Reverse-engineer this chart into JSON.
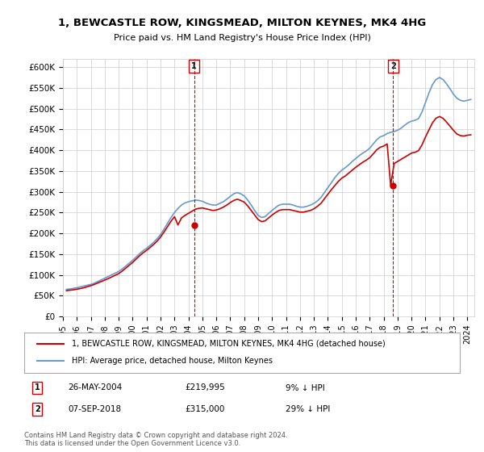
{
  "title": "1, BEWCASTLE ROW, KINGSMEAD, MILTON KEYNES, MK4 4HG",
  "subtitle": "Price paid vs. HM Land Registry's House Price Index (HPI)",
  "legend_line1": "1, BEWCASTLE ROW, KINGSMEAD, MILTON KEYNES, MK4 4HG (detached house)",
  "legend_line2": "HPI: Average price, detached house, Milton Keynes",
  "annotation1_label": "1",
  "annotation1_date": "26-MAY-2004",
  "annotation1_price": "£219,995",
  "annotation1_hpi": "9% ↓ HPI",
  "annotation2_label": "2",
  "annotation2_date": "07-SEP-2018",
  "annotation2_price": "£315,000",
  "annotation2_hpi": "29% ↓ HPI",
  "footer": "Contains HM Land Registry data © Crown copyright and database right 2024.\nThis data is licensed under the Open Government Licence v3.0.",
  "hpi_color": "#6699cc",
  "price_color": "#cc0000",
  "annotation_color": "#cc0000",
  "background_color": "#ffffff",
  "grid_color": "#cccccc",
  "ylim": [
    0,
    620000
  ],
  "yticks": [
    0,
    50000,
    100000,
    150000,
    200000,
    250000,
    300000,
    350000,
    400000,
    450000,
    500000,
    550000,
    600000
  ],
  "ytick_labels": [
    "£0",
    "£50K",
    "£100K",
    "£150K",
    "£200K",
    "£250K",
    "£300K",
    "£350K",
    "£400K",
    "£450K",
    "£500K",
    "£550K",
    "£600K"
  ],
  "hpi_x": [
    1995.25,
    1995.5,
    1995.75,
    1996.0,
    1996.25,
    1996.5,
    1996.75,
    1997.0,
    1997.25,
    1997.5,
    1997.75,
    1998.0,
    1998.25,
    1998.5,
    1998.75,
    1999.0,
    1999.25,
    1999.5,
    1999.75,
    2000.0,
    2000.25,
    2000.5,
    2000.75,
    2001.0,
    2001.25,
    2001.5,
    2001.75,
    2002.0,
    2002.25,
    2002.5,
    2002.75,
    2003.0,
    2003.25,
    2003.5,
    2003.75,
    2004.0,
    2004.25,
    2004.5,
    2004.75,
    2005.0,
    2005.25,
    2005.5,
    2005.75,
    2006.0,
    2006.25,
    2006.5,
    2006.75,
    2007.0,
    2007.25,
    2007.5,
    2007.75,
    2008.0,
    2008.25,
    2008.5,
    2008.75,
    2009.0,
    2009.25,
    2009.5,
    2009.75,
    2010.0,
    2010.25,
    2010.5,
    2010.75,
    2011.0,
    2011.25,
    2011.5,
    2011.75,
    2012.0,
    2012.25,
    2012.5,
    2012.75,
    2013.0,
    2013.25,
    2013.5,
    2013.75,
    2014.0,
    2014.25,
    2014.5,
    2014.75,
    2015.0,
    2015.25,
    2015.5,
    2015.75,
    2016.0,
    2016.25,
    2016.5,
    2016.75,
    2017.0,
    2017.25,
    2017.5,
    2017.75,
    2018.0,
    2018.25,
    2018.5,
    2018.75,
    2019.0,
    2019.25,
    2019.5,
    2019.75,
    2020.0,
    2020.25,
    2020.5,
    2020.75,
    2021.0,
    2021.25,
    2021.5,
    2021.75,
    2022.0,
    2022.25,
    2022.5,
    2022.75,
    2023.0,
    2023.25,
    2023.5,
    2023.75,
    2024.0,
    2024.25
  ],
  "hpi_y": [
    65000,
    66000,
    67500,
    69000,
    71000,
    73000,
    75000,
    77000,
    80000,
    84000,
    88000,
    92000,
    96000,
    100000,
    104000,
    108000,
    114000,
    121000,
    128000,
    135000,
    143000,
    151000,
    158000,
    164000,
    171000,
    178000,
    187000,
    197000,
    210000,
    224000,
    238000,
    250000,
    260000,
    268000,
    273000,
    276000,
    278000,
    280000,
    279000,
    277000,
    273000,
    270000,
    268000,
    268000,
    272000,
    276000,
    282000,
    289000,
    295000,
    298000,
    295000,
    290000,
    280000,
    268000,
    255000,
    243000,
    238000,
    240000,
    248000,
    255000,
    262000,
    268000,
    270000,
    270000,
    270000,
    268000,
    265000,
    263000,
    263000,
    265000,
    268000,
    272000,
    278000,
    286000,
    298000,
    310000,
    322000,
    334000,
    344000,
    352000,
    358000,
    365000,
    373000,
    380000,
    387000,
    393000,
    398000,
    405000,
    415000,
    425000,
    432000,
    435000,
    440000,
    443000,
    445000,
    448000,
    453000,
    460000,
    466000,
    470000,
    472000,
    476000,
    492000,
    515000,
    538000,
    558000,
    570000,
    575000,
    570000,
    560000,
    548000,
    535000,
    525000,
    520000,
    518000,
    520000,
    522000
  ],
  "price_x": [
    1995.25,
    1995.5,
    1995.75,
    1996.0,
    1996.25,
    1996.5,
    1996.75,
    1997.0,
    1997.25,
    1997.5,
    1997.75,
    1998.0,
    1998.25,
    1998.5,
    1998.75,
    1999.0,
    1999.25,
    1999.5,
    1999.75,
    2000.0,
    2000.25,
    2000.5,
    2000.75,
    2001.0,
    2001.25,
    2001.5,
    2001.75,
    2002.0,
    2002.25,
    2002.5,
    2002.75,
    2003.0,
    2003.25,
    2003.5,
    2003.75,
    2004.0,
    2004.25,
    2004.5,
    2004.75,
    2005.0,
    2005.25,
    2005.5,
    2005.75,
    2006.0,
    2006.25,
    2006.5,
    2006.75,
    2007.0,
    2007.25,
    2007.5,
    2007.75,
    2008.0,
    2008.25,
    2008.5,
    2008.75,
    2009.0,
    2009.25,
    2009.5,
    2009.75,
    2010.0,
    2010.25,
    2010.5,
    2010.75,
    2011.0,
    2011.25,
    2011.5,
    2011.75,
    2012.0,
    2012.25,
    2012.5,
    2012.75,
    2013.0,
    2013.25,
    2013.5,
    2013.75,
    2014.0,
    2014.25,
    2014.5,
    2014.75,
    2015.0,
    2015.25,
    2015.5,
    2015.75,
    2016.0,
    2016.25,
    2016.5,
    2016.75,
    2017.0,
    2017.25,
    2017.5,
    2017.75,
    2018.0,
    2018.25,
    2018.5,
    2018.75,
    2019.0,
    2019.25,
    2019.5,
    2019.75,
    2020.0,
    2020.25,
    2020.5,
    2020.75,
    2021.0,
    2021.25,
    2021.5,
    2021.75,
    2022.0,
    2022.25,
    2022.5,
    2022.75,
    2023.0,
    2023.25,
    2023.5,
    2023.75,
    2024.0,
    2024.25
  ],
  "price_y": [
    62000,
    63000,
    64000,
    65500,
    67000,
    69000,
    71500,
    74000,
    77000,
    80500,
    84000,
    87500,
    91000,
    95000,
    99000,
    103000,
    109000,
    116000,
    123000,
    130000,
    138000,
    146000,
    153000,
    159000,
    166000,
    173000,
    181000,
    191000,
    203000,
    216000,
    229000,
    240000,
    219995,
    237000,
    243000,
    248000,
    253000,
    258000,
    260000,
    261000,
    259000,
    257000,
    255000,
    256000,
    259000,
    263000,
    268000,
    274000,
    279000,
    282000,
    279000,
    275000,
    266000,
    255000,
    244000,
    233000,
    228000,
    230000,
    237000,
    244000,
    250000,
    255000,
    257000,
    257000,
    257000,
    255000,
    253000,
    251000,
    251000,
    253000,
    255000,
    259000,
    265000,
    272000,
    283000,
    294000,
    305000,
    315000,
    325000,
    333000,
    338000,
    345000,
    352000,
    359000,
    365000,
    371000,
    376000,
    382000,
    391000,
    401000,
    407000,
    410000,
    415000,
    315000,
    368000,
    373000,
    378000,
    383000,
    388000,
    393000,
    395000,
    399000,
    413000,
    432000,
    449000,
    466000,
    477000,
    481000,
    477000,
    468000,
    458000,
    448000,
    439000,
    435000,
    434000,
    436000,
    437000
  ],
  "sale1_x": 2004.4,
  "sale1_y": 219995,
  "sale2_x": 2018.67,
  "sale2_y": 315000,
  "xmin": 1995.0,
  "xmax": 2024.5
}
